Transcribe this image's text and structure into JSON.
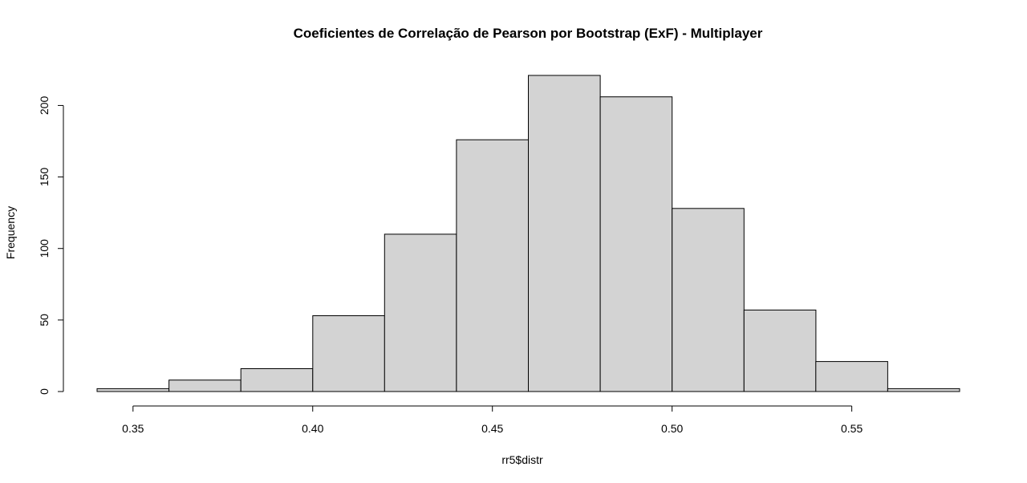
{
  "chart_data": {
    "type": "bar",
    "title": "Coeficientes de Correlação de Pearson por Bootstrap (ExF) - Multiplayer",
    "xlabel": "rr5$distr",
    "ylabel": "Frequency",
    "bin_edges": [
      0.34,
      0.36,
      0.38,
      0.4,
      0.42,
      0.44,
      0.46,
      0.48,
      0.5,
      0.52,
      0.54,
      0.56,
      0.58
    ],
    "values": [
      2,
      8,
      16,
      53,
      110,
      176,
      221,
      206,
      128,
      57,
      21,
      2
    ],
    "xlim": [
      0.34,
      0.58
    ],
    "ylim": [
      0,
      221
    ],
    "x_ticks": [
      0.35,
      0.4,
      0.45,
      0.5,
      0.55
    ],
    "x_tick_labels": [
      "0.35",
      "0.40",
      "0.45",
      "0.50",
      "0.55"
    ],
    "y_ticks": [
      0,
      50,
      100,
      150,
      200
    ],
    "y_tick_labels": [
      "0",
      "50",
      "100",
      "150",
      "200"
    ],
    "grid": false,
    "bar_color": "#d3d3d3",
    "edge_color": "#000000"
  }
}
